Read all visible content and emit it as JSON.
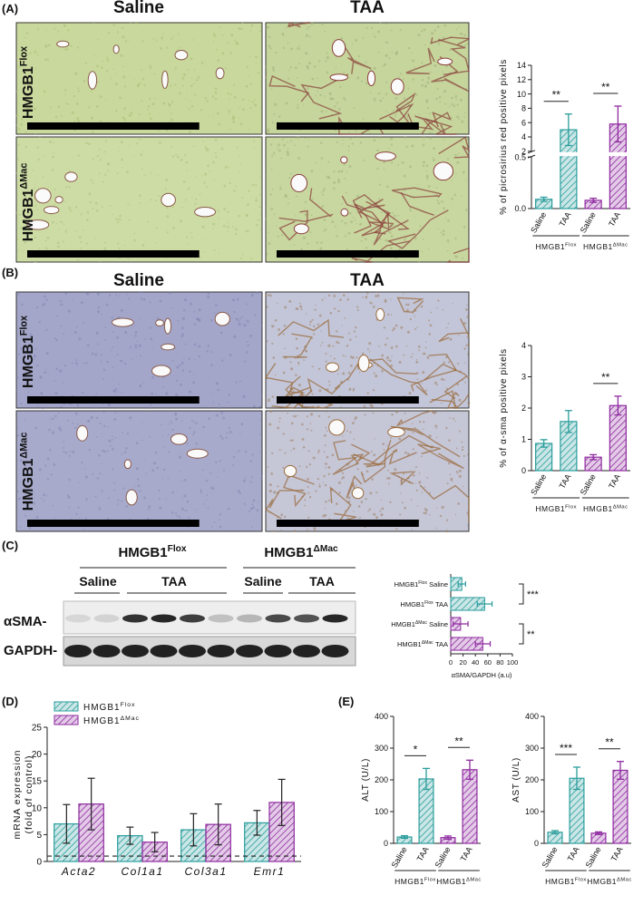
{
  "panel_labels": [
    "(A)",
    "(B)",
    "(C)",
    "(D)",
    "(E)"
  ],
  "image_headers": [
    "Saline",
    "TAA"
  ],
  "row_labels": [
    {
      "base": "HMGB1",
      "sup": "Flox"
    },
    {
      "base": "HMGB1",
      "sup": "ΔMac"
    }
  ],
  "blot": {
    "groups": [
      {
        "base": "HMGB1",
        "sup": "Flox"
      },
      {
        "base": "HMGB1",
        "sup": "ΔMac"
      }
    ],
    "conditions": [
      "Saline",
      "TAA",
      "Saline",
      "TAA"
    ],
    "rows": [
      "αSMA-",
      "GAPDH-"
    ]
  },
  "chart_data": [
    {
      "type": "bar",
      "y_label": "% of picrosirius red positive pixels",
      "categories": [
        "Saline",
        "TAA",
        "Saline",
        "TAA"
      ],
      "group_labels": [
        {
          "base": "HMGB1",
          "sup": "Flox"
        },
        {
          "base": "HMGB1",
          "sup": "ΔMac"
        }
      ],
      "values": [
        0.09,
        5.0,
        0.08,
        5.8
      ],
      "errors": [
        0.02,
        2.2,
        0.02,
        2.5
      ],
      "colors": [
        "#2a9d9c",
        "#2a9d9c",
        "#8e2a9f",
        "#8e2a9f"
      ],
      "ylim": [
        0,
        14
      ],
      "axis_break": [
        0.5,
        2
      ],
      "yticks": [
        {
          "value": 0,
          "label": "0.0"
        },
        {
          "value": 0.5,
          "label": "0.5"
        },
        2,
        4,
        6,
        8,
        10,
        12,
        14
      ],
      "annotations": [
        {
          "text": "**",
          "between": [
            0,
            1
          ]
        },
        {
          "text": "**",
          "between": [
            2,
            3
          ]
        }
      ]
    },
    {
      "type": "bar",
      "y_label": "% of α-sma positive pixels",
      "categories": [
        "Saline",
        "TAA",
        "Saline",
        "TAA"
      ],
      "group_labels": [
        {
          "base": "HMGB1",
          "sup": "Flox"
        },
        {
          "base": "HMGB1",
          "sup": "ΔMac"
        }
      ],
      "values": [
        0.87,
        1.57,
        0.43,
        2.08
      ],
      "errors": [
        0.12,
        0.35,
        0.08,
        0.3
      ],
      "colors": [
        "#2a9d9c",
        "#2a9d9c",
        "#8e2a9f",
        "#8e2a9f"
      ],
      "ylim": [
        0,
        4
      ],
      "yticks": [
        0,
        1,
        2,
        3,
        4
      ],
      "annotations": [
        {
          "text": "**",
          "between": [
            2,
            3
          ]
        }
      ]
    },
    {
      "type": "hbar",
      "x_label": "αSMA/GAPDH (a.u)",
      "categories": [
        {
          "base": "HMGB1",
          "sup": "Flox",
          "after": "Saline"
        },
        {
          "base": "HMGB1",
          "sup": "Flox",
          "after": "TAA"
        },
        {
          "base": "HMGB1",
          "sup": "ΔMac",
          "after": "Saline"
        },
        {
          "base": "HMGB1",
          "sup": "ΔMac",
          "after": "TAA"
        }
      ],
      "values": [
        18,
        55,
        16,
        52
      ],
      "errors": [
        6,
        12,
        12,
        12
      ],
      "colors": [
        "#2a9d9c",
        "#2a9d9c",
        "#8e2a9f",
        "#8e2a9f"
      ],
      "xlim": [
        0,
        100
      ],
      "xticks": [
        0,
        20,
        40,
        60,
        80,
        100
      ],
      "annotations": [
        {
          "text": "***",
          "between": [
            0,
            1
          ]
        },
        {
          "text": "**",
          "between": [
            2,
            3
          ]
        }
      ]
    },
    {
      "type": "grouped_bar",
      "y_label": [
        "mRNA expression",
        "(fold of control)"
      ],
      "categories": [
        "Acta2",
        "Col1a1",
        "Col3a1",
        "Emr1"
      ],
      "series": [
        {
          "name": {
            "base": "HMGB1",
            "sup": "Flox"
          },
          "color": "#2a9d9c",
          "values": [
            7.0,
            4.8,
            5.9,
            7.2
          ],
          "errors": [
            3.6,
            1.6,
            3.0,
            2.3
          ]
        },
        {
          "name": {
            "base": "HMGB1",
            "sup": "ΔMac"
          },
          "color": "#8e2a9f",
          "values": [
            10.7,
            3.6,
            6.9,
            11.0
          ],
          "errors": [
            4.8,
            1.8,
            3.8,
            4.3
          ]
        }
      ],
      "ylim": [
        0,
        25
      ],
      "yticks": [
        0,
        5,
        10,
        15,
        20,
        25
      ],
      "reference_line": 1
    },
    {
      "type": "bar",
      "y_label": "ALT (U/L)",
      "categories": [
        "Saline",
        "TAA",
        "Saline",
        "TAA"
      ],
      "group_labels": [
        {
          "base": "HMGB1",
          "sup": "Flox"
        },
        {
          "base": "HMGB1",
          "sup": "ΔMac"
        }
      ],
      "values": [
        20,
        203,
        18,
        232
      ],
      "errors": [
        4,
        33,
        5,
        30
      ],
      "colors": [
        "#2a9d9c",
        "#2a9d9c",
        "#8e2a9f",
        "#8e2a9f"
      ],
      "ylim": [
        0,
        400
      ],
      "yticks": [
        0,
        100,
        200,
        300,
        400
      ],
      "annotations": [
        {
          "text": "*",
          "between": [
            0,
            1
          ]
        },
        {
          "text": "**",
          "between": [
            2,
            3
          ]
        }
      ]
    },
    {
      "type": "bar",
      "y_label": "AST (U/L)",
      "categories": [
        "Saline",
        "TAA",
        "Saline",
        "TAA"
      ],
      "group_labels": [
        {
          "base": "HMGB1",
          "sup": "Flox"
        },
        {
          "base": "HMGB1",
          "sup": "ΔMac"
        }
      ],
      "values": [
        35,
        205,
        32,
        230
      ],
      "errors": [
        5,
        35,
        4,
        28
      ],
      "colors": [
        "#2a9d9c",
        "#2a9d9c",
        "#8e2a9f",
        "#8e2a9f"
      ],
      "ylim": [
        0,
        400
      ],
      "yticks": [
        0,
        100,
        200,
        300,
        400
      ],
      "annotations": [
        {
          "text": "***",
          "between": [
            0,
            1
          ]
        },
        {
          "text": "**",
          "between": [
            2,
            3
          ]
        }
      ]
    }
  ]
}
